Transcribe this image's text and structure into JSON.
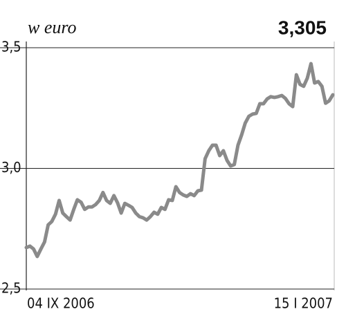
{
  "chart_data": {
    "type": "line",
    "title": "w euro",
    "headline": "3,305",
    "categories": [
      "04 IX 2006",
      null,
      null,
      null,
      null,
      null,
      null,
      null,
      null,
      null,
      null,
      null,
      null,
      null,
      null,
      null,
      null,
      null,
      null,
      null,
      null,
      null,
      null,
      null,
      null,
      null,
      null,
      null,
      null,
      null,
      null,
      null,
      null,
      null,
      null,
      null,
      null,
      null,
      null,
      null,
      null,
      null,
      null,
      null,
      null,
      null,
      null,
      null,
      null,
      null,
      null,
      null,
      null,
      null,
      null,
      null,
      null,
      null,
      null,
      null,
      null,
      null,
      null,
      null,
      null,
      null,
      null,
      null,
      null,
      null,
      null,
      null,
      null,
      null,
      null,
      null,
      null,
      null,
      null,
      null,
      null,
      null,
      null,
      null,
      "15 I 2007"
    ],
    "series": [
      {
        "color": "#8a8a8a",
        "values": [
          2.672,
          2.678,
          2.666,
          2.635,
          2.666,
          2.695,
          2.766,
          2.78,
          2.81,
          2.867,
          2.815,
          2.8,
          2.786,
          2.83,
          2.87,
          2.86,
          2.83,
          2.84,
          2.84,
          2.85,
          2.867,
          2.9,
          2.867,
          2.855,
          2.887,
          2.858,
          2.815,
          2.855,
          2.847,
          2.838,
          2.815,
          2.8,
          2.795,
          2.786,
          2.8,
          2.818,
          2.81,
          2.838,
          2.83,
          2.87,
          2.867,
          2.924,
          2.9,
          2.89,
          2.884,
          2.895,
          2.887,
          2.907,
          2.91,
          3.04,
          3.073,
          3.096,
          3.096,
          3.053,
          3.073,
          3.033,
          3.01,
          3.016,
          3.096,
          3.139,
          3.188,
          3.216,
          3.225,
          3.228,
          3.268,
          3.268,
          3.288,
          3.297,
          3.294,
          3.297,
          3.302,
          3.29,
          3.268,
          3.256,
          3.388,
          3.348,
          3.34,
          3.374,
          3.434,
          3.354,
          3.36,
          3.34,
          3.27,
          3.28,
          3.305
        ]
      }
    ],
    "ylim": [
      2.5,
      3.5
    ],
    "yticks": [
      {
        "value": 2.5,
        "label": "2,5"
      },
      {
        "value": 3.0,
        "label": "3,0"
      },
      {
        "value": 3.5,
        "label": "3,5"
      }
    ],
    "grid": true
  }
}
